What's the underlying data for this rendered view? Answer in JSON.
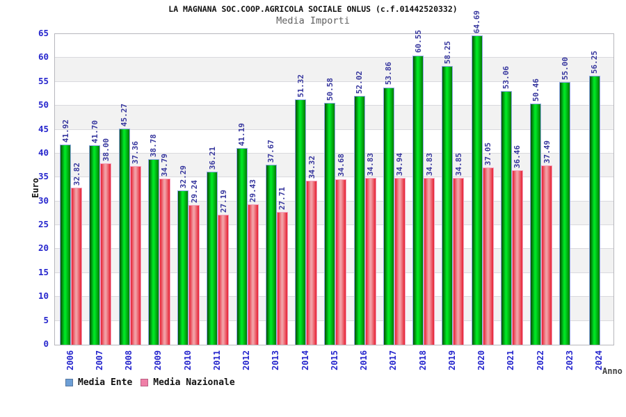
{
  "header": {
    "title": "LA MAGNANA SOC.COOP.AGRICOLA SOCIALE ONLUS (c.f.01442520332)",
    "subtitle": "Media Importi"
  },
  "chart_data": {
    "type": "bar",
    "title": "LA MAGNANA SOC.COOP.AGRICOLA SOCIALE ONLUS (c.f.01442520332)",
    "subtitle": "Media Importi",
    "xlabel": "Anno",
    "ylabel": "Euro",
    "ylim": [
      0,
      65
    ],
    "ytick_step": 5,
    "grid": "horizontal-bands",
    "legend_position": "bottom-left",
    "categories": [
      "2006",
      "2007",
      "2008",
      "2009",
      "2010",
      "2011",
      "2012",
      "2013",
      "2014",
      "2015",
      "2016",
      "2017",
      "2018",
      "2019",
      "2020",
      "2021",
      "2022",
      "2023",
      "2024"
    ],
    "series": [
      {
        "name": "Media Ente",
        "values": [
          41.92,
          41.7,
          45.27,
          38.78,
          32.29,
          36.21,
          41.19,
          37.67,
          51.32,
          50.58,
          52.02,
          53.86,
          60.55,
          58.25,
          64.69,
          53.06,
          50.46,
          55.0,
          56.25
        ]
      },
      {
        "name": "Media Nazionale",
        "values": [
          32.82,
          38.0,
          37.36,
          34.79,
          29.24,
          27.19,
          29.43,
          27.71,
          34.32,
          34.68,
          34.83,
          34.94,
          34.83,
          34.85,
          37.05,
          36.46,
          37.49,
          null,
          null
        ]
      }
    ],
    "colors": {
      "bar_green": [
        "#015001",
        "#00e524",
        "#027a02"
      ],
      "bar_green_border": "#8fa6e9",
      "bar_red": [
        "#e62032",
        "#f2a0a6",
        "#e62032"
      ],
      "bar_red_border": "#f3a0bd",
      "legend_ente": "#6d9fd6",
      "legend_ente_border": "#56779f",
      "legend_nazionale": "#ef7fa7",
      "legend_nazionale_border": "#b95f82",
      "axis_text": "#2626cd",
      "value_label": "#37379e",
      "band_gray": "#f2f2f2"
    }
  }
}
